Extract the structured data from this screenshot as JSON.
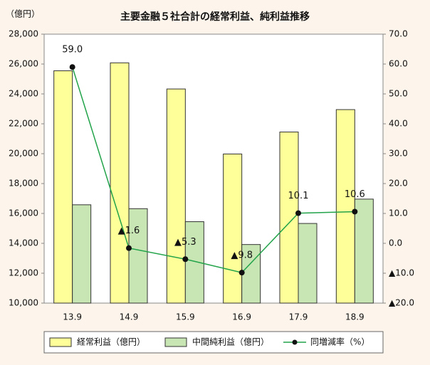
{
  "chart_data": {
    "type": "bar",
    "title": "主要金融５社合計の経常利益、純利益推移",
    "y_unit": "（億円）",
    "categories": [
      "13.9",
      "14.9",
      "15.9",
      "16.9",
      "17.9",
      "18.9"
    ],
    "series": [
      {
        "name": "経常利益（億円）",
        "color": "#ffff99",
        "values": [
          25550,
          26080,
          24330,
          19980,
          21450,
          22950
        ]
      },
      {
        "name": "中間純利益（億円）",
        "color": "#c8e6b4",
        "values": [
          16580,
          16320,
          15450,
          13920,
          15330,
          16960
        ]
      },
      {
        "name": "同増減率（%）",
        "type": "line",
        "axis": "y2",
        "color": "#22a34a",
        "values": [
          59.0,
          -1.6,
          -5.3,
          -9.8,
          10.1,
          10.6
        ],
        "value_labels": [
          "59.0",
          "▲1.6",
          "▲5.3",
          "▲9.8",
          "10.1",
          "10.6"
        ]
      }
    ],
    "ylim": [
      10000,
      28000
    ],
    "yticks": [
      {
        "value": 10000,
        "label": "10,000"
      },
      {
        "value": 12000,
        "label": "12,000"
      },
      {
        "value": 14000,
        "label": "14,000"
      },
      {
        "value": 16000,
        "label": "16,000"
      },
      {
        "value": 18000,
        "label": "18,000"
      },
      {
        "value": 20000,
        "label": "20,000"
      },
      {
        "value": 22000,
        "label": "22,000"
      },
      {
        "value": 24000,
        "label": "24,000"
      },
      {
        "value": 26000,
        "label": "26,000"
      },
      {
        "value": 28000,
        "label": "28,000"
      }
    ],
    "y2lim": [
      -20,
      70
    ],
    "y2ticks": [
      {
        "value": -20,
        "label": "▲20.0"
      },
      {
        "value": -10,
        "label": "▲10.0"
      },
      {
        "value": 0,
        "label": "0.0"
      },
      {
        "value": 10,
        "label": "10.0"
      },
      {
        "value": 20,
        "label": "20.0"
      },
      {
        "value": 30,
        "label": "30.0"
      },
      {
        "value": 40,
        "label": "40.0"
      },
      {
        "value": 50,
        "label": "50.0"
      },
      {
        "value": 60,
        "label": "60.0"
      },
      {
        "value": 70,
        "label": "70.0"
      }
    ],
    "grid": false,
    "legend": "bottom"
  }
}
